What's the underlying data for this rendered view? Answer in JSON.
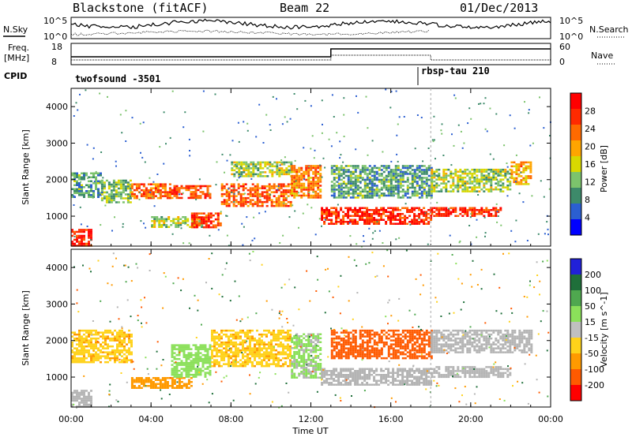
{
  "header": {
    "station": "Blackstone (fitACF)",
    "beam": "Beam 22",
    "date": "01/Dec/2013"
  },
  "side_labels": {
    "nsky": "N.Sky",
    "nsearch": "N.Search",
    "freq": "Freq.",
    "freq_unit": "[MHz]",
    "nave": "Nave",
    "cpid": "CPID"
  },
  "noise_panel": {
    "yticks_left": [
      "10^5",
      "10^0"
    ],
    "yticks_right": [
      "10^5",
      "10^0"
    ]
  },
  "freq_panel": {
    "yticks_left": [
      "18",
      "8"
    ],
    "yticks_right": [
      "60",
      "0"
    ]
  },
  "cpid_panel": {
    "segments": [
      {
        "label": "twofsound -3501",
        "start_hour": 0
      },
      {
        "label": "rbsp-tau 210",
        "start_hour": 18
      }
    ]
  },
  "colors": {
    "power_scale": [
      "#0000ff",
      "#2b5fd1",
      "#3d8a6a",
      "#7cc36c",
      "#d8d800",
      "#ffa500",
      "#ff6a00",
      "#ff2a00",
      "#ff0000"
    ],
    "velocity_scale": [
      "#2121d8",
      "#1f6f3a",
      "#4fa84f",
      "#8be05a",
      "#c0c0c0",
      "#ffd21a",
      "#ff9a00",
      "#ff5a00",
      "#ff0000"
    ],
    "ground_scatter": "#b4b4b4"
  },
  "chart_data": [
    {
      "type": "heatmap",
      "panel": "power",
      "xlabel": "",
      "ylabel": "Slant Range [km]",
      "xlim": [
        0,
        24
      ],
      "ylim": [
        180,
        4500
      ],
      "yticks": [
        1000,
        2000,
        3000,
        4000
      ],
      "colorbar": {
        "label": "Power [dB]",
        "range": [
          0,
          32
        ],
        "ticks": [
          4,
          8,
          12,
          16,
          20,
          24,
          28
        ]
      },
      "bands": [
        {
          "t0": 0.0,
          "t1": 1.0,
          "r0": 200,
          "r1": 650,
          "dB": 28
        },
        {
          "t0": 0.0,
          "t1": 1.5,
          "r0": 1500,
          "r1": 2200,
          "dB": 10
        },
        {
          "t0": 1.5,
          "t1": 3.0,
          "r0": 1400,
          "r1": 2000,
          "dB": 12
        },
        {
          "t0": 3.0,
          "t1": 5.0,
          "r0": 1500,
          "r1": 1900,
          "dB": 24
        },
        {
          "t0": 4.0,
          "t1": 6.5,
          "r0": 700,
          "r1": 1000,
          "dB": 14
        },
        {
          "t0": 6.0,
          "t1": 7.5,
          "r0": 700,
          "r1": 1100,
          "dB": 26
        },
        {
          "t0": 5.0,
          "t1": 7.0,
          "r0": 1500,
          "r1": 1850,
          "dB": 26
        },
        {
          "t0": 7.5,
          "t1": 11.0,
          "r0": 1300,
          "r1": 1900,
          "dB": 24
        },
        {
          "t0": 8.0,
          "t1": 11.0,
          "r0": 2100,
          "r1": 2500,
          "dB": 14
        },
        {
          "t0": 11.0,
          "t1": 12.5,
          "r0": 1500,
          "r1": 2400,
          "dB": 22
        },
        {
          "t0": 12.5,
          "t1": 18.0,
          "r0": 800,
          "r1": 1250,
          "dB": 28
        },
        {
          "t0": 13.0,
          "t1": 18.0,
          "r0": 1500,
          "r1": 2400,
          "dB": 10
        },
        {
          "t0": 18.0,
          "t1": 21.5,
          "r0": 1000,
          "r1": 1250,
          "dB": 28
        },
        {
          "t0": 18.0,
          "t1": 22.0,
          "r0": 1700,
          "r1": 2300,
          "dB": 14
        },
        {
          "t0": 22.0,
          "t1": 23.0,
          "r0": 1900,
          "r1": 2500,
          "dB": 20
        }
      ]
    },
    {
      "type": "heatmap",
      "panel": "velocity",
      "xlabel": "Time UT",
      "ylabel": "Slant Range [km]",
      "xlim": [
        0,
        24
      ],
      "ylim": [
        180,
        4500
      ],
      "xticks": [
        "00:00",
        "04:00",
        "08:00",
        "12:00",
        "16:00",
        "20:00",
        "00:00"
      ],
      "yticks": [
        1000,
        2000,
        3000,
        4000
      ],
      "colorbar": {
        "label": "Velocity [m s^-1]",
        "range": [
          -250,
          250
        ],
        "ticks": [
          200,
          100,
          50,
          15,
          -15,
          -50,
          -100,
          -200
        ]
      },
      "bands": [
        {
          "t0": 0.0,
          "t1": 1.0,
          "r0": 200,
          "r1": 650,
          "v": 0
        },
        {
          "t0": 0.0,
          "t1": 3.0,
          "r0": 1400,
          "r1": 2300,
          "v": -40
        },
        {
          "t0": 3.0,
          "t1": 6.0,
          "r0": 700,
          "r1": 1000,
          "v": -70
        },
        {
          "t0": 5.0,
          "t1": 7.0,
          "r0": 1000,
          "r1": 1900,
          "v": 30
        },
        {
          "t0": 7.0,
          "t1": 11.0,
          "r0": 1300,
          "r1": 2300,
          "v": -40
        },
        {
          "t0": 11.0,
          "t1": 12.5,
          "r0": 1000,
          "r1": 2200,
          "v": 20
        },
        {
          "t0": 12.5,
          "t1": 18.0,
          "r0": 800,
          "r1": 1250,
          "v": 0
        },
        {
          "t0": 13.0,
          "t1": 18.0,
          "r0": 1500,
          "r1": 2300,
          "v": -120
        },
        {
          "t0": 18.0,
          "t1": 22.0,
          "r0": 1000,
          "r1": 1300,
          "v": 0
        },
        {
          "t0": 18.0,
          "t1": 23.0,
          "r0": 1700,
          "r1": 2300,
          "v": 0
        }
      ]
    }
  ]
}
